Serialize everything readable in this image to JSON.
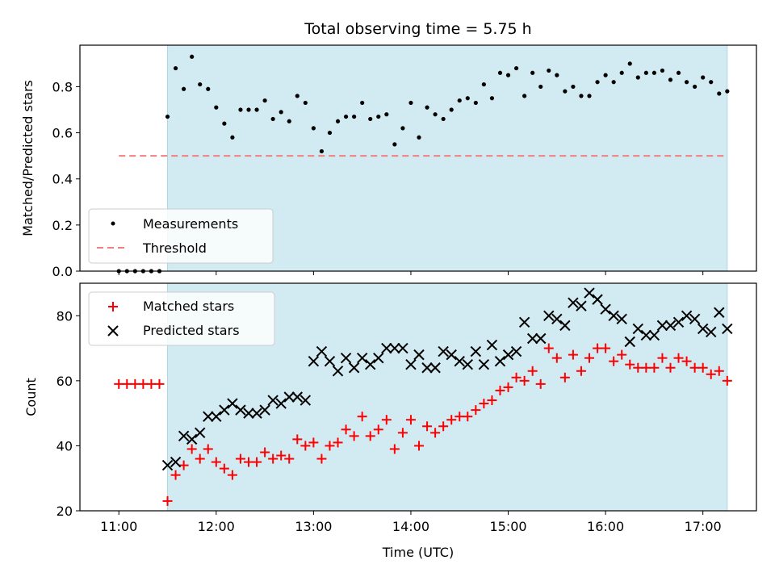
{
  "chart_data": [
    {
      "type": "scatter",
      "panel": "top",
      "title": "Total observing time = 5.75 h",
      "xlabel": "",
      "ylabel": "Matched/Predicted stars",
      "ylim": [
        0,
        0.98
      ],
      "yticks": [
        0.0,
        0.2,
        0.4,
        0.6,
        0.8
      ],
      "ytick_labels": [
        "0.0",
        "0.2",
        "0.4",
        "0.6",
        "0.8"
      ],
      "xlim_hours": [
        10.6,
        17.55
      ],
      "shaded_span_hours": [
        11.5,
        17.25
      ],
      "shaded_color": "#add8e6",
      "legend_position": "lower-left",
      "series": [
        {
          "name": "Measurements",
          "marker": "dot",
          "color": "#000000",
          "x": [
            11.0,
            11.0833,
            11.1667,
            11.25,
            11.3333,
            11.4167,
            11.5,
            11.5833,
            11.6667,
            11.75,
            11.8333,
            11.9167,
            12.0,
            12.0833,
            12.1667,
            12.25,
            12.3333,
            12.4167,
            12.5,
            12.5833,
            12.6667,
            12.75,
            12.8333,
            12.9167,
            13.0,
            13.0833,
            13.1667,
            13.25,
            13.3333,
            13.4167,
            13.5,
            13.5833,
            13.6667,
            13.75,
            13.8333,
            13.9167,
            14.0,
            14.0833,
            14.1667,
            14.25,
            14.3333,
            14.4167,
            14.5,
            14.5833,
            14.6667,
            14.75,
            14.8333,
            14.9167,
            15.0,
            15.0833,
            15.1667,
            15.25,
            15.3333,
            15.4167,
            15.5,
            15.5833,
            15.6667,
            15.75,
            15.8333,
            15.9167,
            16.0,
            16.0833,
            16.1667,
            16.25,
            16.3333,
            16.4167,
            16.5,
            16.5833,
            16.6667,
            16.75,
            16.8333,
            16.9167,
            17.0,
            17.0833,
            17.1667,
            17.25
          ],
          "y": [
            0.0,
            0.0,
            0.0,
            0.0,
            0.0,
            0.0,
            0.67,
            0.88,
            0.79,
            0.93,
            0.81,
            0.79,
            0.71,
            0.64,
            0.58,
            0.7,
            0.7,
            0.7,
            0.74,
            0.66,
            0.69,
            0.65,
            0.76,
            0.73,
            0.62,
            0.52,
            0.6,
            0.65,
            0.67,
            0.67,
            0.73,
            0.66,
            0.67,
            0.68,
            0.55,
            0.62,
            0.73,
            0.58,
            0.71,
            0.68,
            0.66,
            0.7,
            0.74,
            0.75,
            0.73,
            0.81,
            0.75,
            0.86,
            0.85,
            0.88,
            0.76,
            0.86,
            0.8,
            0.87,
            0.85,
            0.78,
            0.8,
            0.76,
            0.76,
            0.82,
            0.85,
            0.82,
            0.86,
            0.9,
            0.84,
            0.86,
            0.86,
            0.87,
            0.83,
            0.86,
            0.82,
            0.8,
            0.84,
            0.82,
            0.77,
            0.78
          ]
        },
        {
          "name": "Threshold",
          "marker": "dashed-line",
          "color": "#f08080",
          "x": [
            11.0,
            17.25
          ],
          "y": [
            0.5,
            0.5
          ]
        }
      ]
    },
    {
      "type": "scatter",
      "panel": "bottom",
      "title": "",
      "xlabel": "Time (UTC)",
      "ylabel": "Count",
      "ylim": [
        20,
        90
      ],
      "yticks": [
        20,
        40,
        60,
        80
      ],
      "ytick_labels": [
        "20",
        "40",
        "60",
        "80"
      ],
      "xlim_hours": [
        10.6,
        17.55
      ],
      "xticks_hours": [
        11,
        12,
        13,
        14,
        15,
        16,
        17
      ],
      "xtick_labels": [
        "11:00",
        "12:00",
        "13:00",
        "14:00",
        "15:00",
        "16:00",
        "17:00"
      ],
      "shaded_span_hours": [
        11.5,
        17.25
      ],
      "shaded_color": "#add8e6",
      "legend_position": "upper-left",
      "series": [
        {
          "name": "Matched stars",
          "marker": "plus",
          "color": "#ff0000",
          "x": [
            11.0,
            11.0833,
            11.1667,
            11.25,
            11.3333,
            11.4167,
            11.5,
            11.5833,
            11.6667,
            11.75,
            11.8333,
            11.9167,
            12.0,
            12.0833,
            12.1667,
            12.25,
            12.3333,
            12.4167,
            12.5,
            12.5833,
            12.6667,
            12.75,
            12.8333,
            12.9167,
            13.0,
            13.0833,
            13.1667,
            13.25,
            13.3333,
            13.4167,
            13.5,
            13.5833,
            13.6667,
            13.75,
            13.8333,
            13.9167,
            14.0,
            14.0833,
            14.1667,
            14.25,
            14.3333,
            14.4167,
            14.5,
            14.5833,
            14.6667,
            14.75,
            14.8333,
            14.9167,
            15.0,
            15.0833,
            15.1667,
            15.25,
            15.3333,
            15.4167,
            15.5,
            15.5833,
            15.6667,
            15.75,
            15.8333,
            15.9167,
            16.0,
            16.0833,
            16.1667,
            16.25,
            16.3333,
            16.4167,
            16.5,
            16.5833,
            16.6667,
            16.75,
            16.8333,
            16.9167,
            17.0,
            17.0833,
            17.1667,
            17.25
          ],
          "y": [
            59,
            59,
            59,
            59,
            59,
            59,
            23,
            31,
            34,
            39,
            36,
            39,
            35,
            33,
            31,
            36,
            35,
            35,
            38,
            36,
            37,
            36,
            42,
            40,
            41,
            36,
            40,
            41,
            45,
            43,
            49,
            43,
            45,
            48,
            39,
            44,
            48,
            40,
            46,
            44,
            46,
            48,
            49,
            49,
            51,
            53,
            54,
            57,
            58,
            61,
            60,
            63,
            59,
            70,
            67,
            61,
            68,
            63,
            67,
            70,
            70,
            66,
            68,
            65,
            64,
            64,
            64,
            67,
            64,
            67,
            66,
            64,
            64,
            62,
            63,
            60
          ]
        },
        {
          "name": "Predicted stars",
          "marker": "x",
          "color": "#000000",
          "x": [
            11.5,
            11.5833,
            11.6667,
            11.75,
            11.8333,
            11.9167,
            12.0,
            12.0833,
            12.1667,
            12.25,
            12.3333,
            12.4167,
            12.5,
            12.5833,
            12.6667,
            12.75,
            12.8333,
            12.9167,
            13.0,
            13.0833,
            13.1667,
            13.25,
            13.3333,
            13.4167,
            13.5,
            13.5833,
            13.6667,
            13.75,
            13.8333,
            13.9167,
            14.0,
            14.0833,
            14.1667,
            14.25,
            14.3333,
            14.4167,
            14.5,
            14.5833,
            14.6667,
            14.75,
            14.8333,
            14.9167,
            15.0,
            15.0833,
            15.1667,
            15.25,
            15.3333,
            15.4167,
            15.5,
            15.5833,
            15.6667,
            15.75,
            15.8333,
            15.9167,
            16.0,
            16.0833,
            16.1667,
            16.25,
            16.3333,
            16.4167,
            16.5,
            16.5833,
            16.6667,
            16.75,
            16.8333,
            16.9167,
            17.0,
            17.0833,
            17.1667,
            17.25
          ],
          "y": [
            34,
            35,
            43,
            42,
            44,
            49,
            49,
            51,
            53,
            51,
            50,
            50,
            51,
            54,
            53,
            55,
            55,
            54,
            66,
            69,
            66,
            63,
            67,
            64,
            67,
            65,
            67,
            70,
            70,
            70,
            65,
            68,
            64,
            64,
            69,
            68,
            66,
            65,
            69,
            65,
            71,
            66,
            68,
            69,
            78,
            73,
            73,
            80,
            79,
            77,
            84,
            83,
            87,
            85,
            82,
            80,
            79,
            72,
            76,
            74,
            74,
            77,
            77,
            78,
            80,
            79,
            76,
            75,
            81,
            76
          ]
        }
      ]
    }
  ]
}
